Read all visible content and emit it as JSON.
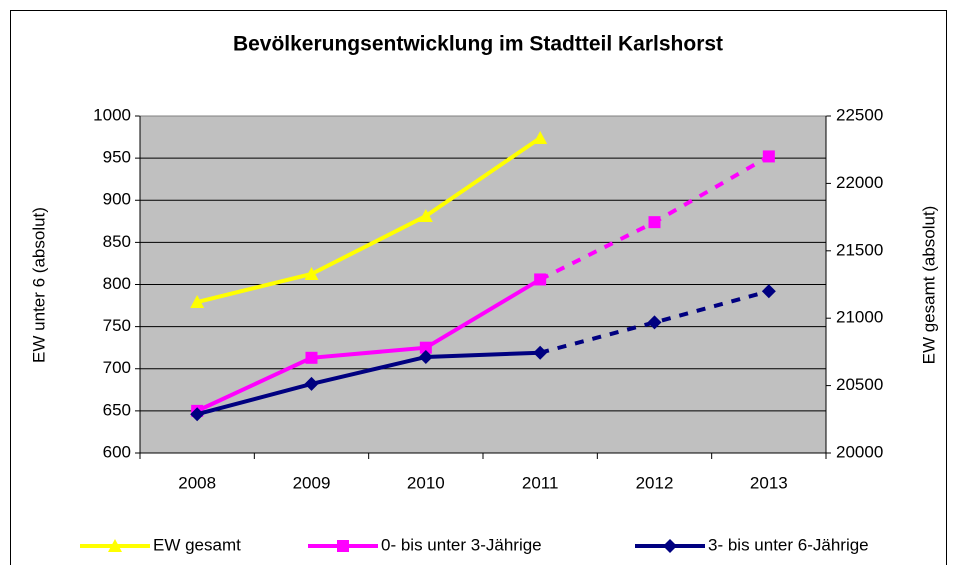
{
  "chart_data": {
    "type": "line",
    "title": "Bevölkerungsentwicklung im Stadtteil Karlshorst",
    "y_label": "EW unter 6 (absolut)",
    "y2_label": "EW gesamt (absolut)",
    "categories": [
      "2008",
      "2009",
      "2010",
      "2011",
      "2012",
      "2013"
    ],
    "ylim": [
      600,
      1000
    ],
    "yticks": [
      600,
      650,
      700,
      750,
      800,
      850,
      900,
      950,
      1000
    ],
    "y2lim": [
      20000,
      22500
    ],
    "y2ticks": [
      20000,
      20500,
      21000,
      21500,
      22000,
      22500
    ],
    "grid": true,
    "legend": "bottom",
    "dashed_from": 3,
    "series": [
      {
        "name": "EW gesamt",
        "color": "#ffff00",
        "marker": "triangle",
        "axis": "y2",
        "values": [
          21120,
          21328,
          21758,
          22337,
          null,
          null
        ]
      },
      {
        "name": "0- bis unter 3-Jährige",
        "color": "#ff00ff",
        "marker": "square",
        "values": [
          650,
          713,
          725,
          806,
          874,
          952
        ]
      },
      {
        "name": "3- bis unter 6-Jährige",
        "color": "#000080",
        "marker": "diamond",
        "values": [
          646,
          682,
          714,
          719,
          755,
          792
        ]
      }
    ]
  }
}
